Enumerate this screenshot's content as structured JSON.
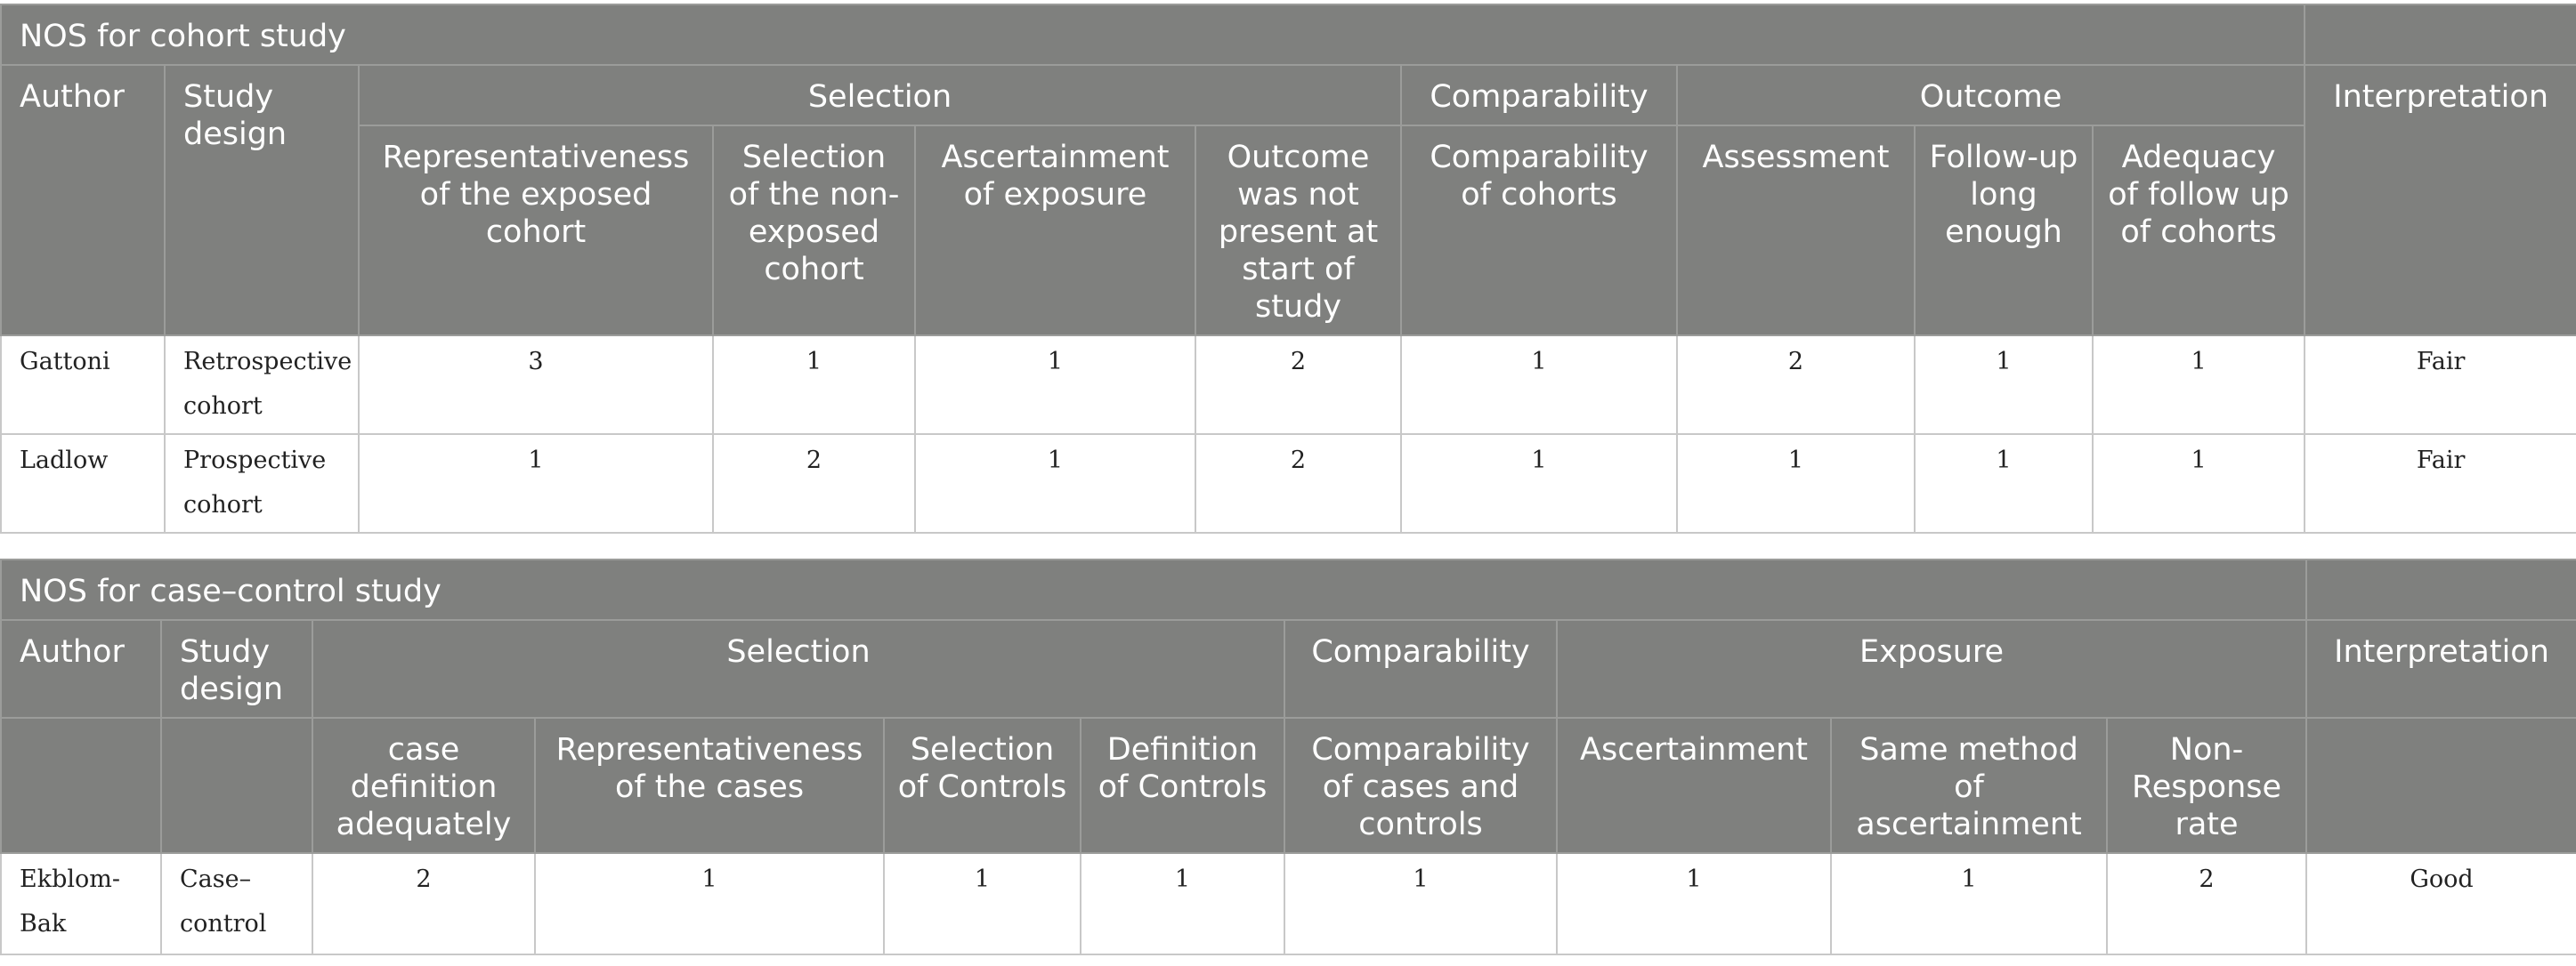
{
  "cohort": {
    "title": "NOS for cohort study",
    "headers": {
      "author": "Author",
      "study_design": "Study design",
      "selection": "Selection",
      "comparability": "Comparability",
      "outcome": "Outcome",
      "interpretation": "Interpretation"
    },
    "subheaders": [
      "Representativeness of the exposed cohort",
      "Selection of the non-exposed cohort",
      "Ascertainment of exposure",
      "Outcome was not present at start of study",
      "Comparability of cohorts",
      "Assessment",
      "Follow-up long enough",
      "Adequacy of follow up of cohorts"
    ],
    "rows": [
      {
        "author": "Gattoni",
        "design": "Retrospective cohort",
        "scores": [
          "3",
          "1",
          "1",
          "2",
          "1",
          "2",
          "1",
          "1"
        ],
        "interpretation": "Fair"
      },
      {
        "author": "Ladlow",
        "design": "Prospective cohort",
        "scores": [
          "1",
          "2",
          "1",
          "2",
          "1",
          "1",
          "1",
          "1"
        ],
        "interpretation": "Fair"
      }
    ]
  },
  "case_control": {
    "title": "NOS for case–control study",
    "headers": {
      "author": "Author",
      "study_design": "Study design",
      "selection": "Selection",
      "comparability": "Comparability",
      "exposure": "Exposure",
      "interpretation": "Interpretation"
    },
    "subheaders": [
      "case definition adequately",
      "Representativeness of the cases",
      "Selection of Controls",
      "Definition of Controls",
      "Comparability of cases and controls",
      "Ascertainment",
      "Same method of ascertainment",
      "Non-Response rate"
    ],
    "rows": [
      {
        "author": "Ekblom-Bak",
        "design": "Case–control",
        "scores": [
          "2",
          "1",
          "1",
          "1",
          "1",
          "1",
          "1",
          "2"
        ],
        "interpretation": "Good"
      }
    ]
  }
}
